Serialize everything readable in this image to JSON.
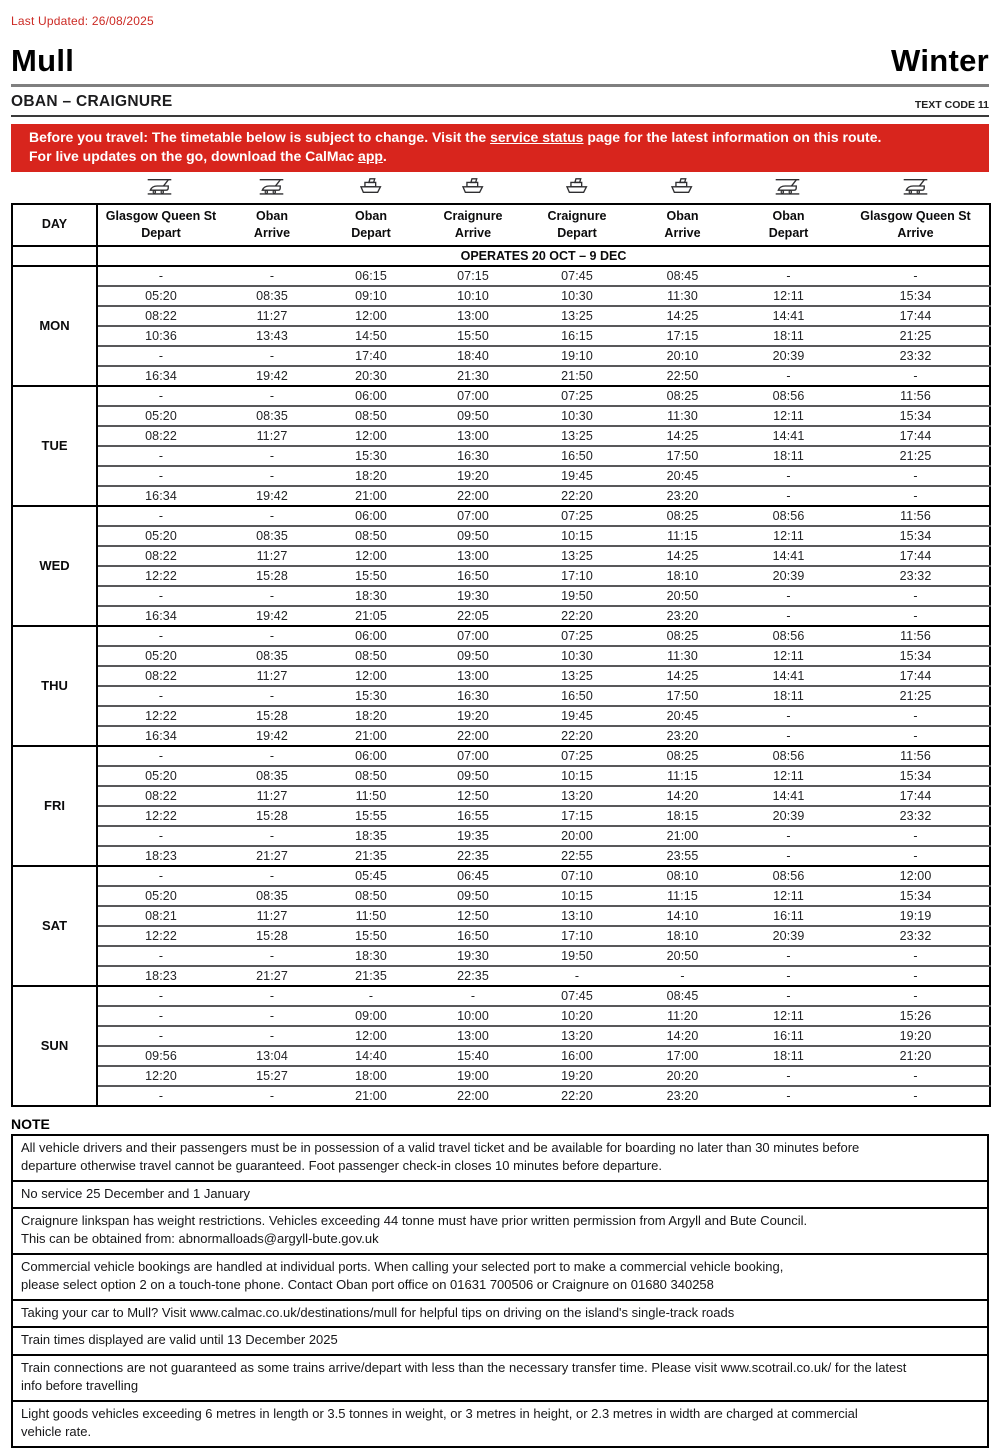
{
  "meta": {
    "last_updated": "Last Updated:  26/08/2025"
  },
  "header": {
    "title": "Mull",
    "season": "Winter",
    "route": "OBAN – CRAIGNURE",
    "text_code": "TEXT CODE 11"
  },
  "banner": {
    "bg_color": "#d8251d",
    "line1_pre": "Before you travel: The timetable below is subject to change. Visit the ",
    "line1_link": "service status",
    "line1_post": " page for the latest information on this route.",
    "line2_pre": "For live updates on the go, download the CalMac ",
    "line2_link": "app",
    "line2_post": "."
  },
  "timetable": {
    "day_column_header": "DAY",
    "operates": "OPERATES 20 OCT – 9 DEC",
    "columns": [
      {
        "icon": "train",
        "place": "Glasgow Queen St",
        "action": "Depart"
      },
      {
        "icon": "train",
        "place": "Oban",
        "action": "Arrive"
      },
      {
        "icon": "ferry",
        "place": "Oban",
        "action": "Depart"
      },
      {
        "icon": "ferry",
        "place": "Craignure",
        "action": "Arrive"
      },
      {
        "icon": "ferry",
        "place": "Craignure",
        "action": "Depart"
      },
      {
        "icon": "ferry",
        "place": "Oban",
        "action": "Arrive"
      },
      {
        "icon": "train",
        "place": "Oban",
        "action": "Depart"
      },
      {
        "icon": "train",
        "place": "Glasgow Queen St",
        "action": "Arrive"
      }
    ],
    "days": [
      {
        "day": "MON",
        "rows": [
          [
            "-",
            "-",
            "06:15",
            "07:15",
            "07:45",
            "08:45",
            "-",
            "-"
          ],
          [
            "05:20",
            "08:35",
            "09:10",
            "10:10",
            "10:30",
            "11:30",
            "12:11",
            "15:34"
          ],
          [
            "08:22",
            "11:27",
            "12:00",
            "13:00",
            "13:25",
            "14:25",
            "14:41",
            "17:44"
          ],
          [
            "10:36",
            "13:43",
            "14:50",
            "15:50",
            "16:15",
            "17:15",
            "18:11",
            "21:25"
          ],
          [
            "-",
            "-",
            "17:40",
            "18:40",
            "19:10",
            "20:10",
            "20:39",
            "23:32"
          ],
          [
            "16:34",
            "19:42",
            "20:30",
            "21:30",
            "21:50",
            "22:50",
            "-",
            "-"
          ]
        ]
      },
      {
        "day": "TUE",
        "rows": [
          [
            "-",
            "-",
            "06:00",
            "07:00",
            "07:25",
            "08:25",
            "08:56",
            "11:56"
          ],
          [
            "05:20",
            "08:35",
            "08:50",
            "09:50",
            "10:30",
            "11:30",
            "12:11",
            "15:34"
          ],
          [
            "08:22",
            "11:27",
            "12:00",
            "13:00",
            "13:25",
            "14:25",
            "14:41",
            "17:44"
          ],
          [
            "-",
            "-",
            "15:30",
            "16:30",
            "16:50",
            "17:50",
            "18:11",
            "21:25"
          ],
          [
            "-",
            "-",
            "18:20",
            "19:20",
            "19:45",
            "20:45",
            "-",
            "-"
          ],
          [
            "16:34",
            "19:42",
            "21:00",
            "22:00",
            "22:20",
            "23:20",
            "-",
            "-"
          ]
        ]
      },
      {
        "day": "WED",
        "rows": [
          [
            "-",
            "-",
            "06:00",
            "07:00",
            "07:25",
            "08:25",
            "08:56",
            "11:56"
          ],
          [
            "05:20",
            "08:35",
            "08:50",
            "09:50",
            "10:15",
            "11:15",
            "12:11",
            "15:34"
          ],
          [
            "08:22",
            "11:27",
            "12:00",
            "13:00",
            "13:25",
            "14:25",
            "14:41",
            "17:44"
          ],
          [
            "12:22",
            "15:28",
            "15:50",
            "16:50",
            "17:10",
            "18:10",
            "20:39",
            "23:32"
          ],
          [
            "-",
            "-",
            "18:30",
            "19:30",
            "19:50",
            "20:50",
            "-",
            "-"
          ],
          [
            "16:34",
            "19:42",
            "21:05",
            "22:05",
            "22:20",
            "23:20",
            "-",
            "-"
          ]
        ]
      },
      {
        "day": "THU",
        "rows": [
          [
            "-",
            "-",
            "06:00",
            "07:00",
            "07:25",
            "08:25",
            "08:56",
            "11:56"
          ],
          [
            "05:20",
            "08:35",
            "08:50",
            "09:50",
            "10:30",
            "11:30",
            "12:11",
            "15:34"
          ],
          [
            "08:22",
            "11:27",
            "12:00",
            "13:00",
            "13:25",
            "14:25",
            "14:41",
            "17:44"
          ],
          [
            "-",
            "-",
            "15:30",
            "16:30",
            "16:50",
            "17:50",
            "18:11",
            "21:25"
          ],
          [
            "12:22",
            "15:28",
            "18:20",
            "19:20",
            "19:45",
            "20:45",
            "-",
            "-"
          ],
          [
            "16:34",
            "19:42",
            "21:00",
            "22:00",
            "22:20",
            "23:20",
            "-",
            "-"
          ]
        ]
      },
      {
        "day": "FRI",
        "rows": [
          [
            "-",
            "-",
            "06:00",
            "07:00",
            "07:25",
            "08:25",
            "08:56",
            "11:56"
          ],
          [
            "05:20",
            "08:35",
            "08:50",
            "09:50",
            "10:15",
            "11:15",
            "12:11",
            "15:34"
          ],
          [
            "08:22",
            "11:27",
            "11:50",
            "12:50",
            "13:20",
            "14:20",
            "14:41",
            "17:44"
          ],
          [
            "12:22",
            "15:28",
            "15:55",
            "16:55",
            "17:15",
            "18:15",
            "20:39",
            "23:32"
          ],
          [
            "-",
            "-",
            "18:35",
            "19:35",
            "20:00",
            "21:00",
            "-",
            "-"
          ],
          [
            "18:23",
            "21:27",
            "21:35",
            "22:35",
            "22:55",
            "23:55",
            "-",
            "-"
          ]
        ]
      },
      {
        "day": "SAT",
        "rows": [
          [
            "-",
            "-",
            "05:45",
            "06:45",
            "07:10",
            "08:10",
            "08:56",
            "12:00"
          ],
          [
            "05:20",
            "08:35",
            "08:50",
            "09:50",
            "10:15",
            "11:15",
            "12:11",
            "15:34"
          ],
          [
            "08:21",
            "11:27",
            "11:50",
            "12:50",
            "13:10",
            "14:10",
            "16:11",
            "19:19"
          ],
          [
            "12:22",
            "15:28",
            "15:50",
            "16:50",
            "17:10",
            "18:10",
            "20:39",
            "23:32"
          ],
          [
            "-",
            "-",
            "18:30",
            "19:30",
            "19:50",
            "20:50",
            "-",
            "-"
          ],
          [
            "18:23",
            "21:27",
            "21:35",
            "22:35",
            "-",
            "-",
            "-",
            "-"
          ]
        ]
      },
      {
        "day": "SUN",
        "rows": [
          [
            "-",
            "-",
            "-",
            "-",
            "07:45",
            "08:45",
            "-",
            "-"
          ],
          [
            "-",
            "-",
            "09:00",
            "10:00",
            "10:20",
            "11:20",
            "12:11",
            "15:26"
          ],
          [
            "-",
            "-",
            "12:00",
            "13:00",
            "13:20",
            "14:20",
            "16:11",
            "19:20"
          ],
          [
            "09:56",
            "13:04",
            "14:40",
            "15:40",
            "16:00",
            "17:00",
            "18:11",
            "21:20"
          ],
          [
            "12:20",
            "15:27",
            "18:00",
            "19:00",
            "19:20",
            "20:20",
            "-",
            "-"
          ],
          [
            "-",
            "-",
            "21:00",
            "22:00",
            "22:20",
            "23:20",
            "-",
            "-"
          ]
        ]
      }
    ]
  },
  "notes": {
    "title": "NOTE",
    "items": [
      "All vehicle drivers and their passengers must be in possession of a valid travel ticket and be available for boarding no later than 30 minutes before\ndeparture otherwise travel cannot be guaranteed. Foot passenger check-in closes 10 minutes before departure.",
      "No service 25 December and 1 January",
      "Craignure linkspan has weight restrictions. Vehicles exceeding 44 tonne must have prior written permission from Argyll and Bute Council.\nThis can be obtained from: abnormalloads@argyll-bute.gov.uk",
      "Commercial vehicle bookings are handled at individual ports. When calling your selected port to make a commercial vehicle booking,\nplease select option 2 on a touch-tone phone. Contact Oban port office on 01631 700506 or Craignure on 01680 340258",
      "Taking your car to Mull? Visit www.calmac.co.uk/destinations/mull for helpful tips on driving on the island's single-track roads",
      "Train times displayed are valid until 13 December 2025",
      "Train connections are not guaranteed as some trains arrive/depart with less than the necessary transfer time. Please visit www.scotrail.co.uk/ for the latest\ninfo before travelling",
      "Light goods vehicles exceeding 6 metres in length or 3.5 tonnes in weight, or 3 metres in height, or 2.3 metres in width are charged at commercial\nvehicle rate."
    ]
  }
}
